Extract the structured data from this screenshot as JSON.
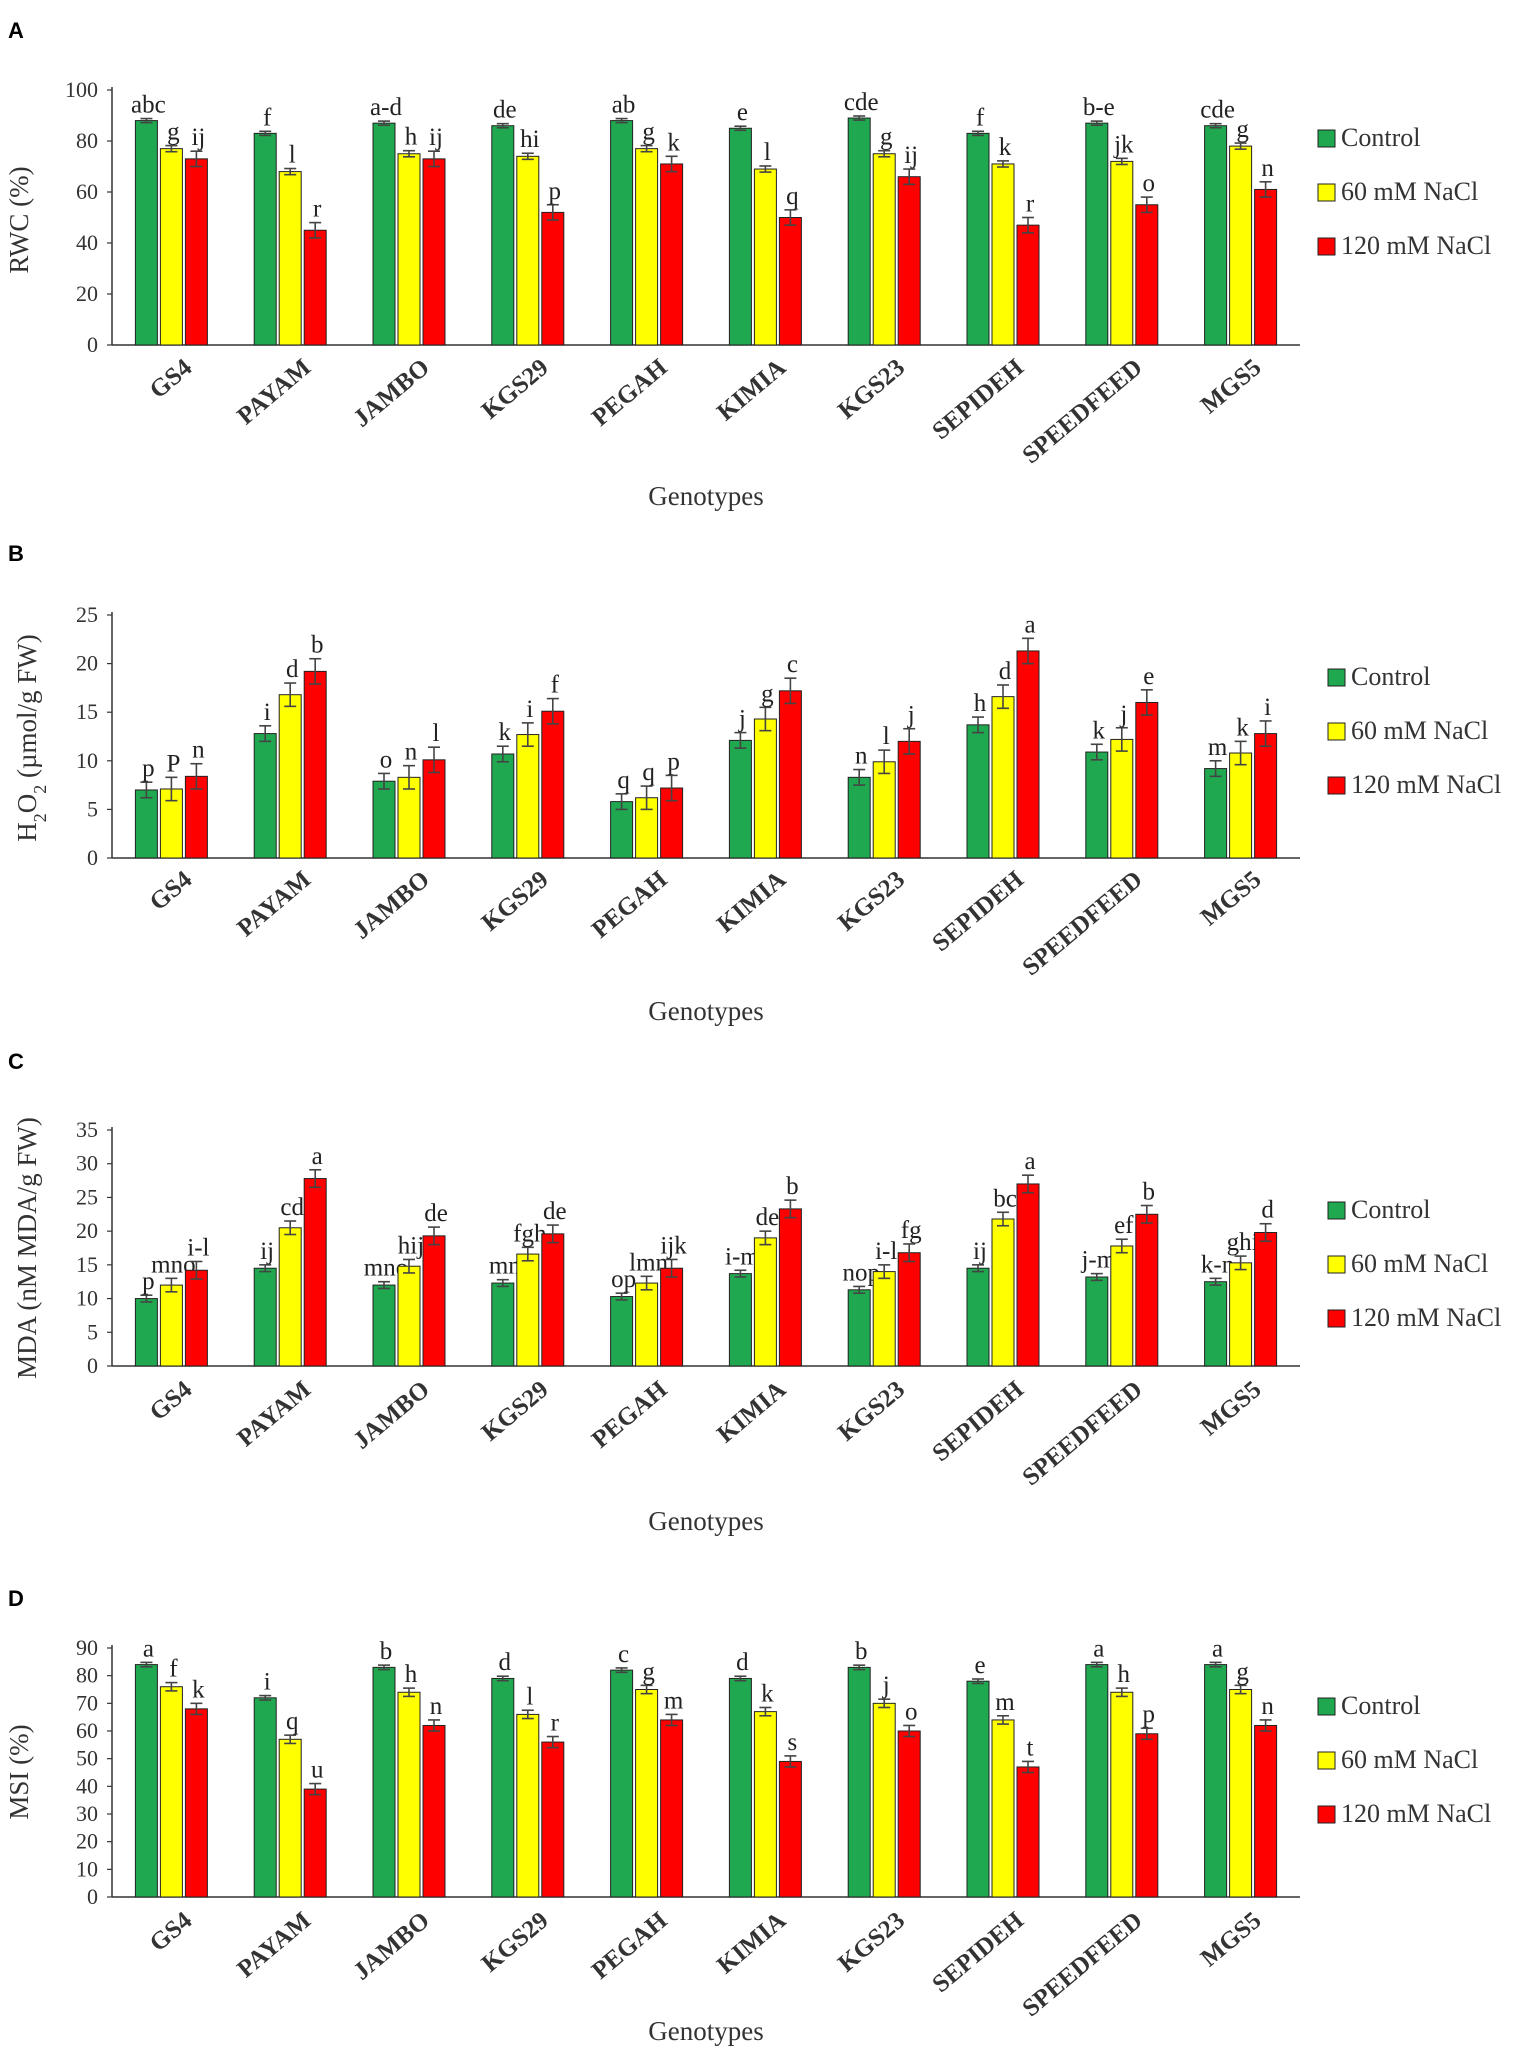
{
  "figure": {
    "legend": [
      {
        "key": "control",
        "label": "Control",
        "color": "#1fa84f"
      },
      {
        "key": "na60",
        "label": "60 mM NaCl",
        "color": "#ffff00"
      },
      {
        "key": "na120",
        "label": "120 mM NaCl",
        "color": "#ff0000"
      }
    ]
  },
  "chart_data": [
    {
      "type": "bar",
      "panel": "A",
      "title": "",
      "xlabel": "Genotypes",
      "ylabel": "RWC (%)",
      "ylim": [
        0,
        100
      ],
      "yticks": [
        0,
        20,
        40,
        60,
        80,
        100
      ],
      "categories": [
        "GS4",
        "PAYAM",
        "JAMBO",
        "KGS29",
        "PEGAH",
        "KIMIA",
        "KGS23",
        "SEPIDEH",
        "SPEEDFEED",
        "MGS5"
      ],
      "series": [
        {
          "name": "Control",
          "values": [
            88,
            83,
            87,
            86,
            88,
            85,
            89,
            83,
            87,
            86
          ],
          "errors": [
            0.8,
            0.8,
            0.8,
            0.8,
            0.8,
            0.8,
            0.8,
            0.8,
            0.8,
            0.8
          ],
          "letters": [
            "abc",
            "f",
            "a-d",
            "de",
            "ab",
            "e",
            "cde",
            "f",
            "b-e",
            "cde"
          ]
        },
        {
          "name": "60 mM NaCl",
          "values": [
            77,
            68,
            75,
            74,
            77,
            69,
            75,
            71,
            72,
            78
          ],
          "errors": [
            1.2,
            1.2,
            1.2,
            1.2,
            1.2,
            1.2,
            1.2,
            1.2,
            1.2,
            1.2
          ],
          "letters": [
            "g",
            "l",
            "h",
            "hi",
            "g",
            "l",
            "g",
            "k",
            "jk",
            "g"
          ]
        },
        {
          "name": "120 mM NaCl",
          "values": [
            73,
            45,
            73,
            52,
            71,
            50,
            66,
            47,
            55,
            61
          ],
          "errors": [
            3,
            3,
            3,
            3,
            3,
            3,
            3,
            3,
            3,
            3
          ],
          "letters": [
            "ij",
            "r",
            "ij",
            "p",
            "k",
            "q",
            "ij",
            "r",
            "o",
            "n"
          ]
        }
      ]
    },
    {
      "type": "bar",
      "panel": "B",
      "title": "",
      "xlabel": "Genotypes",
      "ylabel": "H2O2 (µmol/g FW)",
      "ylabel_parts": {
        "a": "H",
        "sub": "2",
        "b": "O",
        "sub2": "2",
        "c": " (µmol/g FW)"
      },
      "ylim": [
        0,
        25
      ],
      "yticks": [
        0,
        5,
        10,
        15,
        20,
        25
      ],
      "categories": [
        "GS4",
        "PAYAM",
        "JAMBO",
        "KGS29",
        "PEGAH",
        "KIMIA",
        "KGS23",
        "SEPIDEH",
        "SPEEDFEED",
        "MGS5"
      ],
      "series": [
        {
          "name": "Control",
          "values": [
            7,
            12.8,
            7.9,
            10.7,
            5.8,
            12.1,
            8.3,
            13.7,
            10.9,
            9.2
          ],
          "errors": [
            0.8,
            0.8,
            0.8,
            0.8,
            0.8,
            0.8,
            0.8,
            0.8,
            0.8,
            0.8
          ],
          "letters": [
            "p",
            "i",
            "o",
            "k",
            "q",
            "j",
            "n",
            "h",
            "k",
            "m"
          ]
        },
        {
          "name": "60 mM NaCl",
          "values": [
            7.1,
            16.8,
            8.3,
            12.7,
            6.2,
            14.3,
            9.9,
            16.6,
            12.2,
            10.8
          ],
          "errors": [
            1.2,
            1.2,
            1.2,
            1.2,
            1.2,
            1.2,
            1.2,
            1.2,
            1.2,
            1.2
          ],
          "letters": [
            "P",
            "d",
            "n",
            "i",
            "q",
            "g",
            "l",
            "d",
            "j",
            "k"
          ]
        },
        {
          "name": "120 mM NaCl",
          "values": [
            8.4,
            19.2,
            10.1,
            15.1,
            7.2,
            17.2,
            12,
            21.3,
            16,
            12.8
          ],
          "errors": [
            1.3,
            1.3,
            1.3,
            1.3,
            1.3,
            1.3,
            1.3,
            1.3,
            1.3,
            1.3
          ],
          "letters": [
            "n",
            "b",
            "l",
            "f",
            "p",
            "c",
            "j",
            "a",
            "e",
            "i"
          ]
        }
      ]
    },
    {
      "type": "bar",
      "panel": "C",
      "title": "",
      "xlabel": "Genotypes",
      "ylabel": "MDA (nM MDA/g FW)",
      "ylim": [
        0,
        35
      ],
      "yticks": [
        0,
        5,
        10,
        15,
        20,
        25,
        30,
        35
      ],
      "categories": [
        "GS4",
        "PAYAM",
        "JAMBO",
        "KGS29",
        "PEGAH",
        "KIMIA",
        "KGS23",
        "SEPIDEH",
        "SPEEDFEED",
        "MGS5"
      ],
      "series": [
        {
          "name": "Control",
          "values": [
            10,
            14.5,
            12,
            12.3,
            10.3,
            13.7,
            11.3,
            14.5,
            13.2,
            12.5
          ],
          "errors": [
            0.5,
            0.5,
            0.5,
            0.5,
            0.5,
            0.5,
            0.5,
            0.5,
            0.5,
            0.5
          ],
          "letters": [
            "p",
            "ij",
            "mno",
            "mn",
            "op",
            "i-m",
            "nop",
            "ij",
            "j-m",
            "k-n"
          ]
        },
        {
          "name": "60 mM NaCl",
          "values": [
            12,
            20.5,
            14.8,
            16.6,
            12.3,
            19,
            14,
            21.8,
            17.8,
            15.3
          ],
          "errors": [
            1,
            1,
            1,
            1,
            1,
            1,
            1,
            1,
            1,
            1
          ],
          "letters": [
            "mno",
            "cd",
            "hij",
            "fgh",
            "lmn",
            "de",
            "i-l",
            "bc",
            "ef",
            "ghi"
          ]
        },
        {
          "name": "120 mM NaCl",
          "values": [
            14.2,
            27.8,
            19.3,
            19.6,
            14.5,
            23.3,
            16.8,
            27,
            22.5,
            19.8
          ],
          "errors": [
            1.3,
            1.3,
            1.3,
            1.3,
            1.3,
            1.3,
            1.3,
            1.3,
            1.3,
            1.3
          ],
          "letters": [
            "i-l",
            "a",
            "de",
            "de",
            "ijk",
            "b",
            "fg",
            "a",
            "b",
            "d"
          ]
        }
      ]
    },
    {
      "type": "bar",
      "panel": "D",
      "title": "",
      "xlabel": "Genotypes",
      "ylabel": "MSI (%)",
      "ylim": [
        0,
        90
      ],
      "yticks": [
        0,
        10,
        20,
        30,
        40,
        50,
        60,
        70,
        80,
        90
      ],
      "categories": [
        "GS4",
        "PAYAM",
        "JAMBO",
        "KGS29",
        "PEGAH",
        "KIMIA",
        "KGS23",
        "SEPIDEH",
        "SPEEDFEED",
        "MGS5"
      ],
      "series": [
        {
          "name": "Control",
          "values": [
            84,
            72,
            83,
            79,
            82,
            79,
            83,
            78,
            84,
            84
          ],
          "errors": [
            0.8,
            0.8,
            0.8,
            0.8,
            0.8,
            0.8,
            0.8,
            0.8,
            0.8,
            0.8
          ],
          "letters": [
            "a",
            "i",
            "b",
            "d",
            "c",
            "d",
            "b",
            "e",
            "a",
            "a"
          ]
        },
        {
          "name": "60 mM NaCl",
          "values": [
            76,
            57,
            74,
            66,
            75,
            67,
            70,
            64,
            74,
            75
          ],
          "errors": [
            1.5,
            1.5,
            1.5,
            1.5,
            1.5,
            1.5,
            1.5,
            1.5,
            1.5,
            1.5
          ],
          "letters": [
            "f",
            "q",
            "h",
            "l",
            "g",
            "k",
            "j",
            "m",
            "h",
            "g"
          ]
        },
        {
          "name": "120 mM NaCl",
          "values": [
            68,
            39,
            62,
            56,
            64,
            49,
            60,
            47,
            59,
            62
          ],
          "errors": [
            2,
            2,
            2,
            2,
            2,
            2,
            2,
            2,
            2,
            2
          ],
          "letters": [
            "k",
            "u",
            "n",
            "r",
            "m",
            "s",
            "o",
            "t",
            "p",
            "n"
          ]
        }
      ]
    }
  ]
}
